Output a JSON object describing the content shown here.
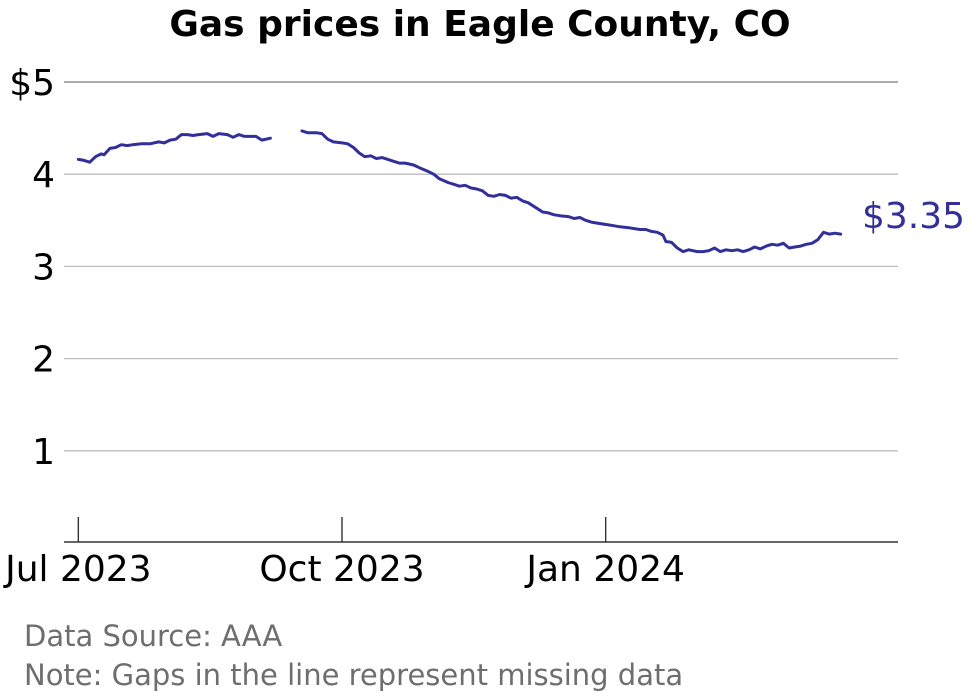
{
  "chart_data": {
    "type": "line",
    "title": "Gas prices in Eagle County, CO",
    "xlabel": "",
    "ylabel": "",
    "x_range": [
      "2023-06-26",
      "2024-04-12"
    ],
    "ylim": [
      0,
      5
    ],
    "y_ticks": [
      1,
      2,
      3,
      4,
      5
    ],
    "y_tick_labels": [
      "1",
      "2",
      "3",
      "4",
      "$5"
    ],
    "x_ticks": [
      "2023-07-01",
      "2023-10-01",
      "2024-01-01"
    ],
    "x_tick_labels": [
      "Jul 2023",
      "Oct 2023",
      "Jan 2024"
    ],
    "grid": "horizontal",
    "legend": "none",
    "color": "#332f99",
    "end_label": "$3.35",
    "series": [
      {
        "segments": [
          [
            [
              "2023-07-01",
              4.16
            ],
            [
              "2023-07-03",
              4.15
            ],
            [
              "2023-07-05",
              4.13
            ],
            [
              "2023-07-07",
              4.19
            ],
            [
              "2023-07-09",
              4.22
            ],
            [
              "2023-07-10",
              4.21
            ],
            [
              "2023-07-12",
              4.28
            ],
            [
              "2023-07-14",
              4.29
            ],
            [
              "2023-07-16",
              4.32
            ],
            [
              "2023-07-18",
              4.31
            ],
            [
              "2023-07-20",
              4.32
            ],
            [
              "2023-07-23",
              4.33
            ],
            [
              "2023-07-26",
              4.33
            ],
            [
              "2023-07-29",
              4.35
            ],
            [
              "2023-07-31",
              4.34
            ],
            [
              "2023-08-02",
              4.37
            ],
            [
              "2023-08-04",
              4.38
            ],
            [
              "2023-08-06",
              4.43
            ],
            [
              "2023-08-08",
              4.43
            ],
            [
              "2023-08-10",
              4.42
            ],
            [
              "2023-08-12",
              4.43
            ],
            [
              "2023-08-15",
              4.44
            ],
            [
              "2023-08-17",
              4.41
            ],
            [
              "2023-08-19",
              4.44
            ],
            [
              "2023-08-22",
              4.43
            ],
            [
              "2023-08-24",
              4.4
            ],
            [
              "2023-08-26",
              4.43
            ],
            [
              "2023-08-28",
              4.41
            ],
            [
              "2023-08-30",
              4.41
            ],
            [
              "2023-09-01",
              4.41
            ],
            [
              "2023-09-03",
              4.37
            ],
            [
              "2023-09-06",
              4.39
            ]
          ],
          [
            [
              "2023-09-17",
              4.47
            ],
            [
              "2023-09-19",
              4.45
            ],
            [
              "2023-09-22",
              4.45
            ],
            [
              "2023-09-24",
              4.44
            ],
            [
              "2023-09-26",
              4.38
            ],
            [
              "2023-09-28",
              4.35
            ],
            [
              "2023-10-01",
              4.34
            ],
            [
              "2023-10-03",
              4.33
            ],
            [
              "2023-10-05",
              4.29
            ],
            [
              "2023-10-07",
              4.23
            ],
            [
              "2023-10-09",
              4.19
            ],
            [
              "2023-10-11",
              4.2
            ],
            [
              "2023-10-13",
              4.17
            ],
            [
              "2023-10-15",
              4.18
            ],
            [
              "2023-10-17",
              4.16
            ],
            [
              "2023-10-19",
              4.14
            ],
            [
              "2023-10-21",
              4.12
            ],
            [
              "2023-10-23",
              4.12
            ],
            [
              "2023-10-26",
              4.1
            ],
            [
              "2023-10-28",
              4.07
            ],
            [
              "2023-10-31",
              4.03
            ],
            [
              "2023-11-02",
              4.0
            ],
            [
              "2023-11-04",
              3.95
            ],
            [
              "2023-11-07",
              3.91
            ],
            [
              "2023-11-09",
              3.89
            ],
            [
              "2023-11-11",
              3.87
            ],
            [
              "2023-11-13",
              3.88
            ],
            [
              "2023-11-15",
              3.85
            ],
            [
              "2023-11-17",
              3.84
            ],
            [
              "2023-11-19",
              3.82
            ],
            [
              "2023-11-21",
              3.77
            ],
            [
              "2023-11-23",
              3.76
            ],
            [
              "2023-11-25",
              3.78
            ],
            [
              "2023-11-27",
              3.77
            ],
            [
              "2023-11-29",
              3.74
            ],
            [
              "2023-12-01",
              3.75
            ],
            [
              "2023-12-03",
              3.71
            ],
            [
              "2023-12-05",
              3.69
            ],
            [
              "2023-12-08",
              3.63
            ],
            [
              "2023-12-10",
              3.59
            ],
            [
              "2023-12-12",
              3.58
            ],
            [
              "2023-12-14",
              3.56
            ],
            [
              "2023-12-16",
              3.55
            ],
            [
              "2023-12-19",
              3.54
            ],
            [
              "2023-12-21",
              3.52
            ],
            [
              "2023-12-23",
              3.53
            ],
            [
              "2023-12-25",
              3.5
            ],
            [
              "2023-12-27",
              3.48
            ],
            [
              "2023-12-29",
              3.47
            ],
            [
              "2023-12-31",
              3.46
            ],
            [
              "2024-01-02",
              3.45
            ],
            [
              "2024-01-04",
              3.44
            ],
            [
              "2024-01-06",
              3.43
            ],
            [
              "2024-01-09",
              3.42
            ],
            [
              "2024-01-11",
              3.41
            ],
            [
              "2024-01-13",
              3.4
            ],
            [
              "2024-01-15",
              3.4
            ],
            [
              "2024-01-17",
              3.38
            ],
            [
              "2024-01-19",
              3.37
            ],
            [
              "2024-01-21",
              3.34
            ],
            [
              "2024-01-22",
              3.27
            ],
            [
              "2024-01-24",
              3.26
            ],
            [
              "2024-01-26",
              3.2
            ],
            [
              "2024-01-28",
              3.16
            ],
            [
              "2024-01-30",
              3.18
            ],
            [
              "2024-02-02",
              3.16
            ],
            [
              "2024-02-04",
              3.16
            ],
            [
              "2024-02-06",
              3.17
            ],
            [
              "2024-02-08",
              3.2
            ],
            [
              "2024-02-10",
              3.16
            ],
            [
              "2024-02-12",
              3.18
            ],
            [
              "2024-02-14",
              3.17
            ],
            [
              "2024-02-16",
              3.18
            ],
            [
              "2024-02-18",
              3.16
            ],
            [
              "2024-02-20",
              3.18
            ],
            [
              "2024-02-22",
              3.21
            ],
            [
              "2024-02-24",
              3.19
            ],
            [
              "2024-02-26",
              3.22
            ],
            [
              "2024-02-28",
              3.24
            ],
            [
              "2024-03-01",
              3.23
            ],
            [
              "2024-03-03",
              3.25
            ],
            [
              "2024-03-05",
              3.2
            ],
            [
              "2024-03-07",
              3.21
            ],
            [
              "2024-03-09",
              3.22
            ],
            [
              "2024-03-11",
              3.24
            ],
            [
              "2024-03-13",
              3.25
            ],
            [
              "2024-03-15",
              3.29
            ],
            [
              "2024-03-17",
              3.37
            ],
            [
              "2024-03-19",
              3.35
            ],
            [
              "2024-03-21",
              3.36
            ],
            [
              "2024-03-23",
              3.35
            ]
          ]
        ]
      }
    ]
  },
  "footer": {
    "source": "Data Source: AAA",
    "note": "Note: Gaps in the line represent missing data"
  }
}
